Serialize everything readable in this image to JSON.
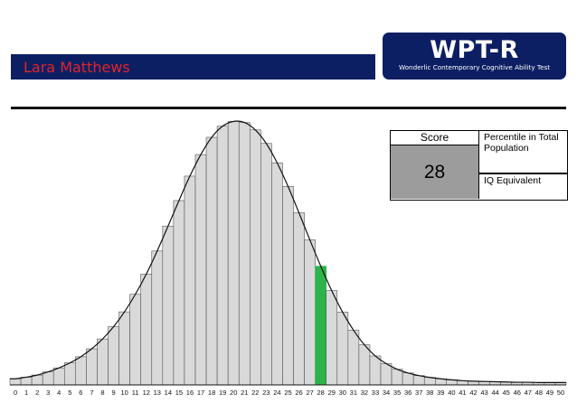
{
  "header": {
    "candidate_name": "Lara Matthews",
    "logo_title": "WPT-R",
    "logo_subtitle": "Wonderlic Contemporary Cognitive Ability Test"
  },
  "score_table": {
    "score_label": "Score",
    "score_value": "28",
    "percentile_label": "Percentile in Total Population",
    "iq_label": "IQ Equivalent"
  },
  "colors": {
    "banner": "#0d1f63",
    "name_text": "#e0242b",
    "bar_fill": "#d9d9d9",
    "highlight": "#2db34a",
    "score_cell": "#9c9c9c"
  },
  "chart_data": {
    "type": "bar",
    "categories": [
      "0",
      "1",
      "2",
      "3",
      "4",
      "5",
      "6",
      "7",
      "8",
      "9",
      "10",
      "11",
      "12",
      "13",
      "14",
      "15",
      "16",
      "17",
      "18",
      "19",
      "20",
      "21",
      "22",
      "23",
      "24",
      "25",
      "26",
      "27",
      "28",
      "29",
      "30",
      "31",
      "32",
      "33",
      "34",
      "35",
      "36",
      "37",
      "38",
      "39",
      "40",
      "41",
      "42",
      "43",
      "44",
      "45",
      "46",
      "47",
      "48",
      "49",
      "50"
    ],
    "values": [
      2.3,
      2.9,
      3.7,
      4.9,
      6.4,
      8.3,
      10.6,
      13.6,
      17.3,
      21.9,
      27.5,
      34.1,
      41.7,
      50.4,
      59.8,
      69.4,
      78.6,
      86.7,
      93.2,
      97.4,
      99.2,
      98.8,
      96.0,
      90.9,
      83.6,
      74.7,
      64.8,
      54.6,
      44.7,
      35.5,
      27.4,
      20.6,
      15.1,
      10.9,
      8.0,
      5.9,
      4.5,
      3.5,
      2.8,
      2.3,
      1.9,
      1.6,
      1.4,
      1.3,
      1.2,
      1.1,
      1.0,
      1.0,
      0.9,
      0.9,
      0.9
    ],
    "highlight_category": "28",
    "ylim": [
      0,
      100
    ],
    "grid": false,
    "legend": "none"
  }
}
